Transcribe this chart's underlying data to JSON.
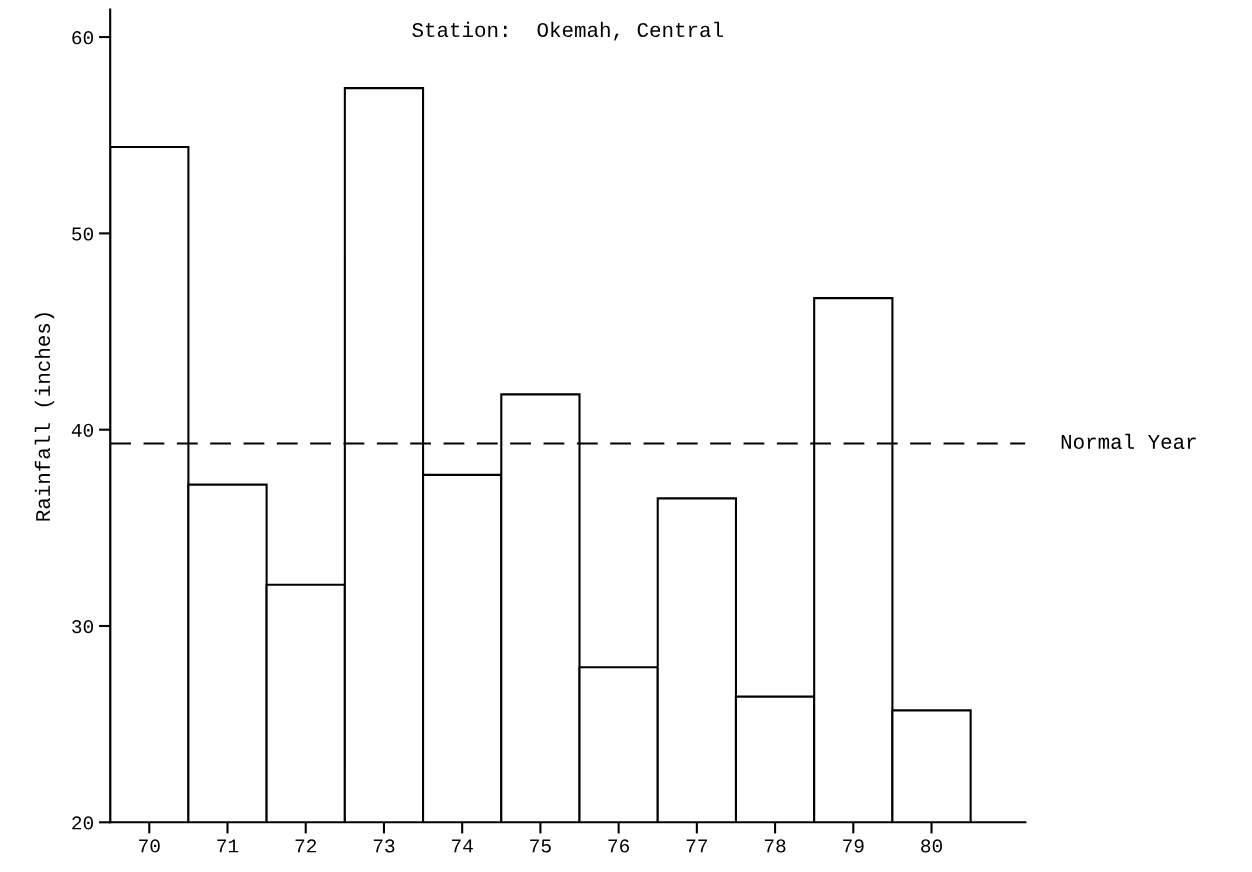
{
  "chart_data": {
    "type": "bar",
    "title": "Station:  Okemah, Central",
    "ylabel": "Rainfall (inches)",
    "categories": [
      "70",
      "71",
      "72",
      "73",
      "74",
      "75",
      "76",
      "77",
      "78",
      "79",
      "80"
    ],
    "values": [
      54.4,
      37.2,
      32.1,
      57.4,
      37.7,
      41.8,
      27.9,
      36.5,
      26.4,
      46.7,
      25.7
    ],
    "color": "#ffffff",
    "ylim": [
      20,
      61.4
    ],
    "yticks": [
      20,
      30,
      40,
      50,
      60
    ],
    "ref_lines": [
      {
        "axis": "y",
        "value": 39.3,
        "label": "Normal Year",
        "line_style": "dashed",
        "color": "#000000"
      }
    ],
    "grid": false,
    "legend": false
  }
}
